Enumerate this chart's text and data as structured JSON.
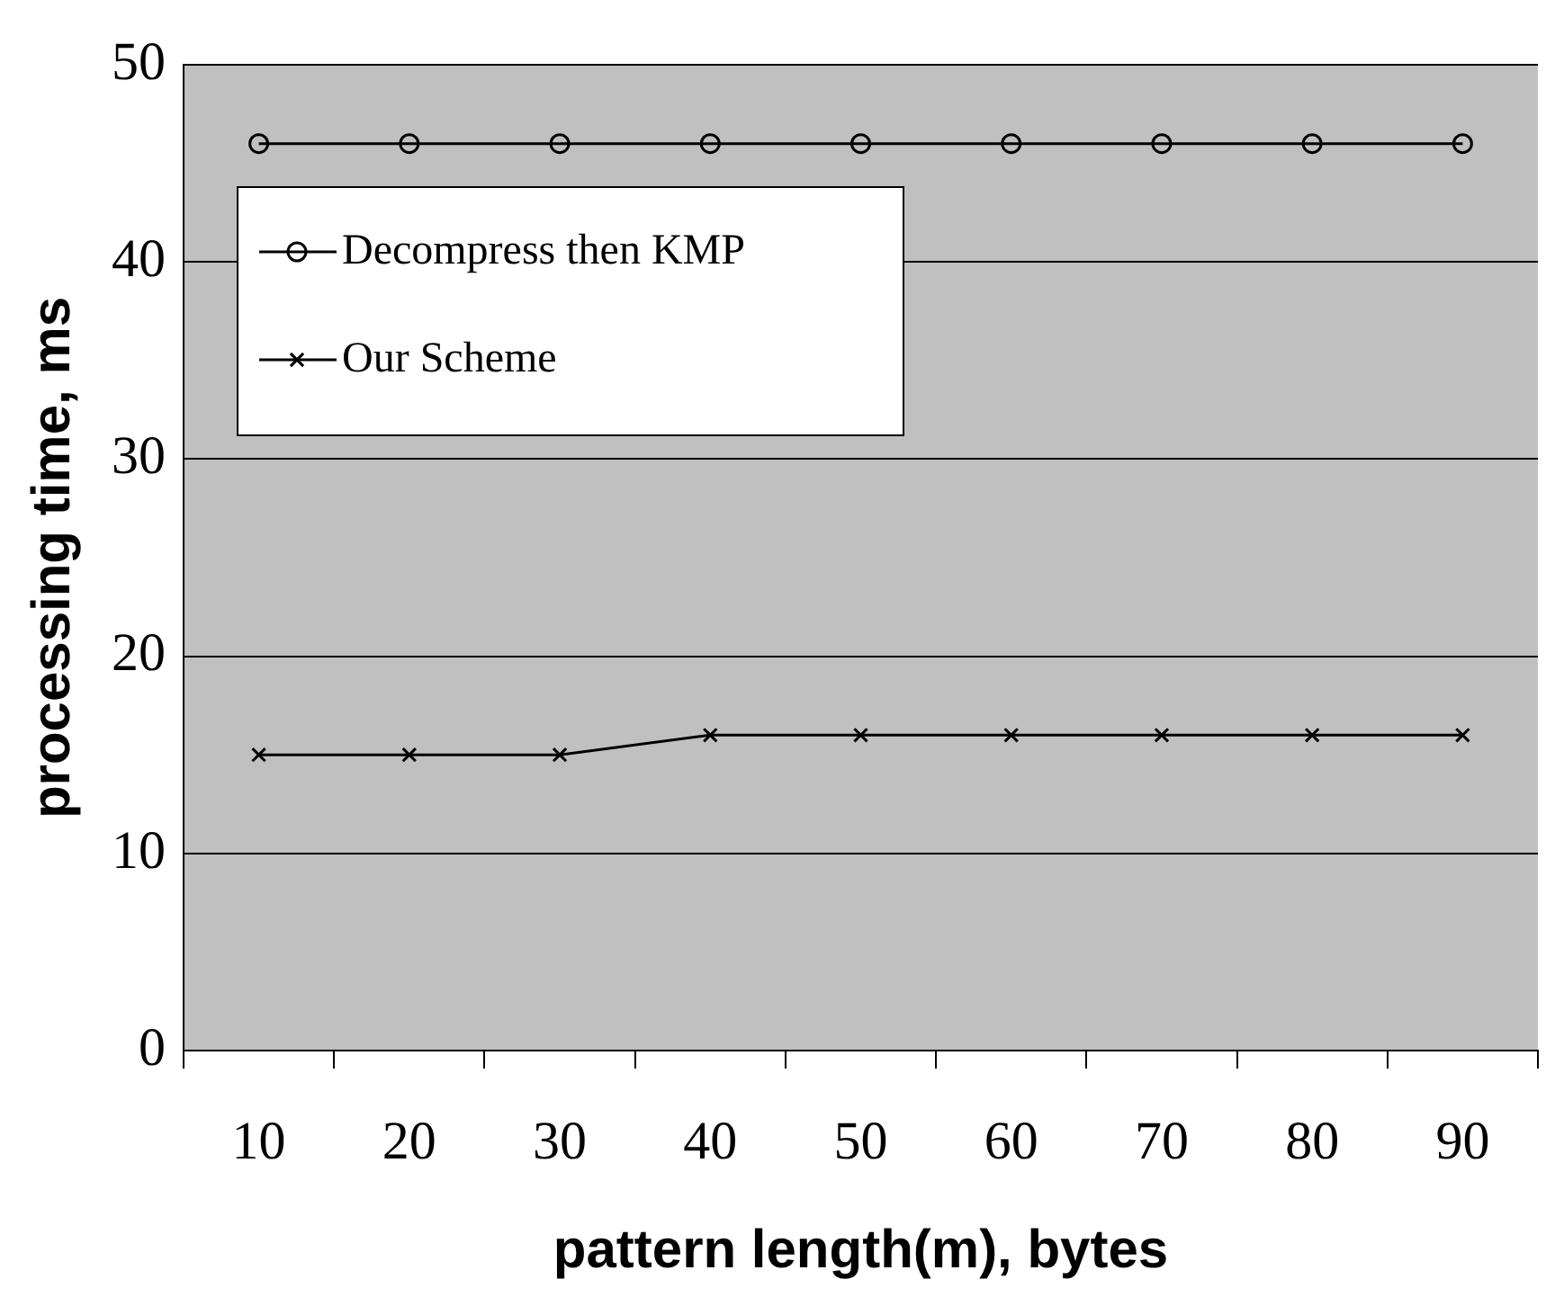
{
  "chart_data": {
    "type": "line",
    "xlabel": "pattern length(m), bytes",
    "ylabel": "processing time, ms",
    "categories": [
      "10",
      "20",
      "30",
      "40",
      "50",
      "60",
      "70",
      "80",
      "90"
    ],
    "series": [
      {
        "name": "Decompress then KMP",
        "color": "#000000",
        "marker": "circle",
        "values": [
          46,
          46,
          46,
          46,
          46,
          46,
          46,
          46,
          46
        ]
      },
      {
        "name": "Our Scheme",
        "color": "#000000",
        "marker": "cross",
        "values": [
          15,
          15,
          15,
          16,
          16,
          16,
          16,
          16,
          16
        ]
      }
    ],
    "ylim": [
      0,
      50
    ],
    "yticks": [
      0,
      10,
      20,
      30,
      40,
      50
    ],
    "grid": "y",
    "legend": "top left",
    "line_style": "solid"
  }
}
